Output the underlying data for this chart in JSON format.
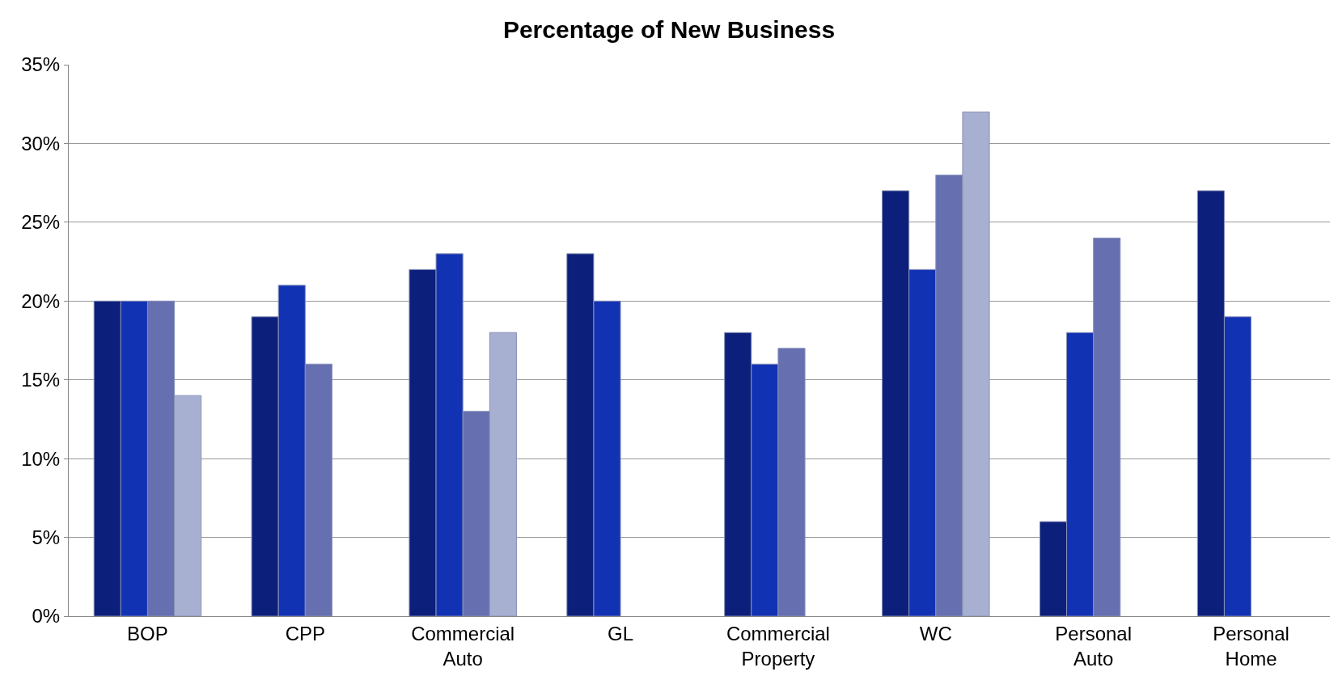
{
  "chart_data": {
    "type": "bar",
    "title": "Percentage of New Business",
    "categories": [
      "BOP",
      "CPP",
      "Commercial Auto",
      "GL",
      "Commercial Property",
      "WC",
      "Personal Auto",
      "Personal Home"
    ],
    "series": [
      {
        "color": "#0c1f7a",
        "values": [
          20,
          19,
          22,
          23,
          18,
          27,
          6,
          27
        ]
      },
      {
        "color": "#1232b4",
        "values": [
          20,
          21,
          23,
          20,
          16,
          22,
          18,
          19
        ]
      },
      {
        "color": "#6670b0",
        "values": [
          20,
          16,
          13,
          null,
          17,
          28,
          24,
          null
        ]
      },
      {
        "color": "#a8b0d2",
        "values": [
          14,
          null,
          18,
          null,
          null,
          32,
          null,
          null
        ]
      }
    ],
    "ylim": [
      0,
      35
    ],
    "yticks": [
      {
        "value": 0,
        "label": "0%"
      },
      {
        "value": 5,
        "label": "5%"
      },
      {
        "value": 10,
        "label": "10%"
      },
      {
        "value": 15,
        "label": "15%"
      },
      {
        "value": 20,
        "label": "20%"
      },
      {
        "value": 25,
        "label": "25%"
      },
      {
        "value": 30,
        "label": "30%"
      },
      {
        "value": 35,
        "label": "35%"
      }
    ],
    "grid": "y"
  }
}
